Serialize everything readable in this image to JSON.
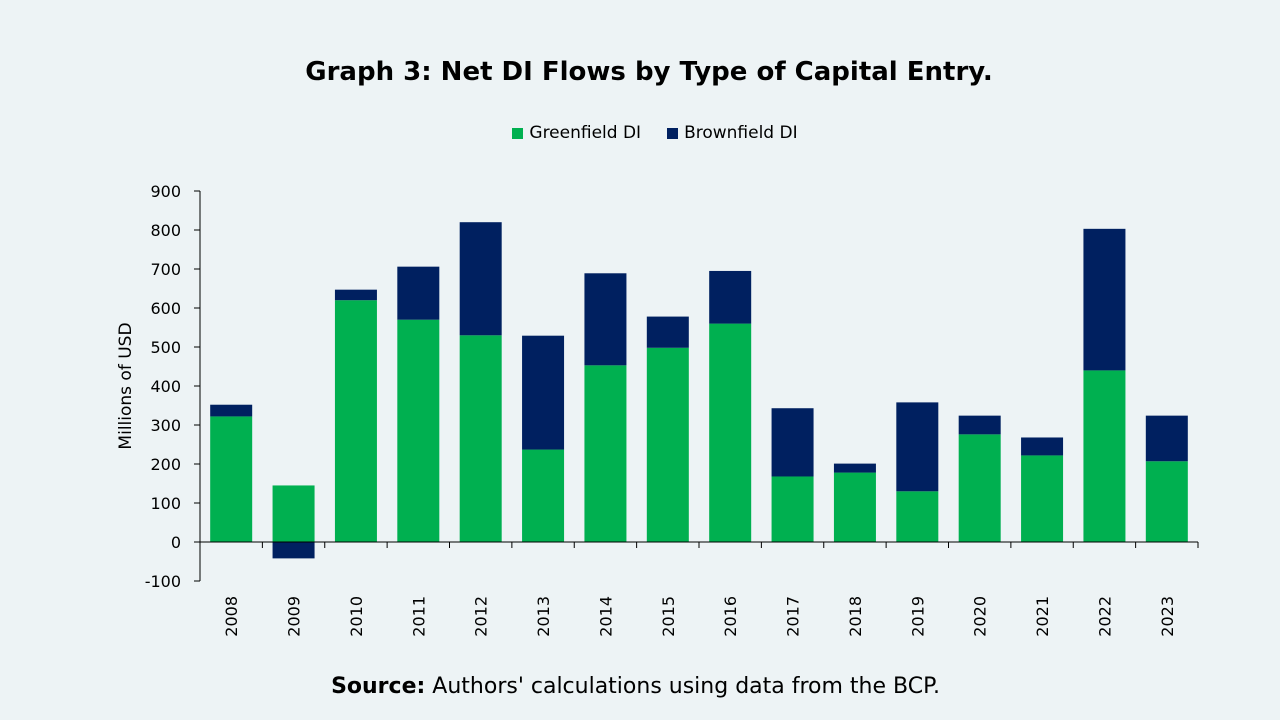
{
  "chart_data": {
    "type": "bar",
    "stacked": true,
    "title": "Graph 3: Net DI Flows by Type of Capital Entry.",
    "ylabel": "Millions of USD",
    "xlabel": "",
    "ylim": [
      -100,
      900
    ],
    "yticks": [
      900,
      800,
      700,
      600,
      500,
      400,
      300,
      200,
      100,
      0,
      -100
    ],
    "legend_position": "top",
    "grid": false,
    "categories": [
      "2008",
      "2009",
      "2010",
      "2011",
      "2012",
      "2013",
      "2014",
      "2015",
      "2016",
      "2017",
      "2018",
      "2019",
      "2020",
      "2021",
      "2022",
      "2023"
    ],
    "series": [
      {
        "name": "Greenfield DI",
        "color": "#00b050",
        "values": [
          322,
          145,
          620,
          570,
          530,
          237,
          453,
          498,
          560,
          168,
          178,
          130,
          276,
          222,
          440,
          207
        ]
      },
      {
        "name": "Brownfield DI",
        "color": "#002060",
        "values": [
          30,
          -42,
          27,
          136,
          290,
          292,
          236,
          80,
          135,
          175,
          23,
          228,
          48,
          46,
          363,
          117
        ]
      }
    ]
  },
  "source": {
    "label": "Source:",
    "text": " Authors' calculations using data from the BCP."
  }
}
